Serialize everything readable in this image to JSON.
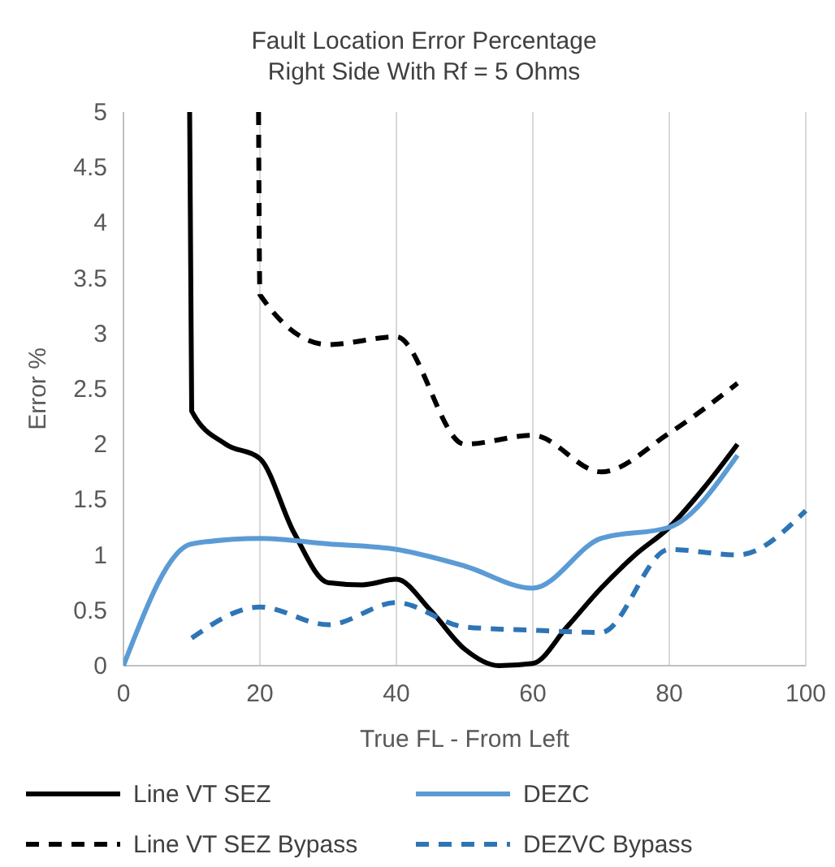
{
  "chart_data": {
    "type": "line",
    "title": "Fault Location Error Percentage",
    "subtitle": "Right Side With Rf = 5 Ohms",
    "xlabel": "True FL - From Left",
    "ylabel": "Error %",
    "xlim": [
      0,
      100
    ],
    "xticks": [
      0,
      20,
      40,
      60,
      80,
      100
    ],
    "ylim": [
      0,
      5
    ],
    "yticks": [
      0,
      0.5,
      1,
      1.5,
      2,
      2.5,
      3,
      3.5,
      4,
      4.5,
      5
    ],
    "grid": "x",
    "legend": "bottom",
    "marker": "none",
    "series": [
      {
        "name": "Line VT SEZ",
        "color": "#000000",
        "line_style": "solid",
        "x": [
          9.7,
          10,
          15,
          20,
          25,
          30,
          35,
          40,
          45,
          50,
          55,
          60,
          65,
          70,
          75,
          80,
          85,
          90
        ],
        "values": [
          5,
          2.3,
          2.0,
          1.87,
          1.2,
          0.75,
          0.73,
          0.78,
          0.5,
          0.15,
          0.0,
          0.02,
          0.35,
          0.7,
          1.0,
          1.25,
          1.6,
          2.0
        ]
      },
      {
        "name": "DEZC",
        "color": "#5b9bd5",
        "line_style": "solid",
        "x": [
          0,
          10,
          20,
          30,
          40,
          50,
          60,
          70,
          80,
          90
        ],
        "values": [
          0,
          1.1,
          1.15,
          1.1,
          1.05,
          0.9,
          0.7,
          1.15,
          1.25,
          1.9
        ]
      },
      {
        "name": "Line VT SEZ Bypass",
        "color": "#000000",
        "line_style": "dashed",
        "x": [
          19.8,
          20,
          30,
          40,
          50,
          60,
          70,
          80,
          90
        ],
        "values": [
          5,
          3.35,
          2.9,
          2.97,
          2.0,
          2.08,
          1.75,
          2.1,
          2.55
        ]
      },
      {
        "name": "DEZVC Bypass",
        "color": "#2e75b6",
        "line_style": "dashed",
        "x": [
          10,
          20,
          30,
          40,
          50,
          60,
          70,
          80,
          90,
          100
        ],
        "values": [
          0.25,
          0.53,
          0.37,
          0.57,
          0.35,
          0.32,
          0.3,
          1.05,
          1.0,
          1.4
        ]
      }
    ]
  }
}
